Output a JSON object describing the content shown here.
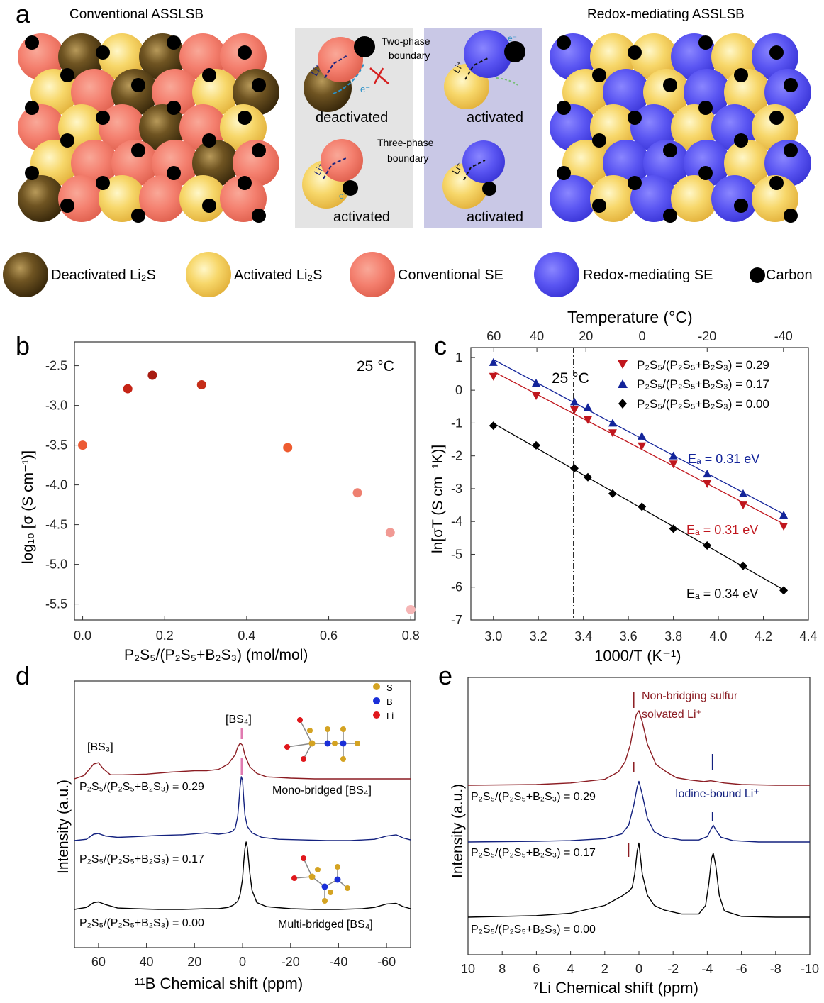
{
  "panel_letters": {
    "a": "a",
    "b": "b",
    "c": "c",
    "d": "d",
    "e": "e"
  },
  "colors": {
    "deactivated": "#5a4216",
    "activated": "#f7d76a",
    "conventional": "#f47f6e",
    "redox": "#5a55f2",
    "carbon": "#000000",
    "red": "#c0161d",
    "blue": "#13249a",
    "black": "#000000",
    "darkred": "#8b1c22",
    "navy": "#13217f"
  },
  "panel_a": {
    "left_title": "Conventional ASSLSB",
    "right_title": "Redox-mediating ASSLSB",
    "two_phase_1": "Two-phase",
    "two_phase_2": "boundary",
    "three_phase_1": "Three-phase",
    "three_phase_2": "boundary",
    "deactivated": "deactivated",
    "activated": "activated",
    "li_label": "Li⁺",
    "e_label": "e⁻",
    "legend": [
      {
        "icon": "deactivated-li2s-sphere",
        "label": "Deactivated Li₂S"
      },
      {
        "icon": "activated-li2s-sphere",
        "label": "Activated Li₂S"
      },
      {
        "icon": "conventional-se-sphere",
        "label": "Conventional SE"
      },
      {
        "icon": "redox-mediating-se-sphere",
        "label": "Redox-mediating SE"
      },
      {
        "icon": "carbon-dot",
        "label": "Carbon"
      }
    ]
  },
  "chart_data": [
    {
      "id": "b",
      "type": "scatter",
      "title": "",
      "annotation": "25 °C",
      "xlabel": "P₂S₅/(P₂S₅+B₂S₃) (mol/mol)",
      "ylabel": "log₁₀ [σ (S cm⁻¹)]",
      "xlim": [
        -0.02,
        0.81
      ],
      "ylim": [
        -5.7,
        -2.2
      ],
      "xticks": [
        0.0,
        0.2,
        0.4,
        0.6,
        0.8
      ],
      "xtick_labels": [
        "0.0",
        "0.2",
        "0.4",
        "0.6",
        "0.8"
      ],
      "yticks": [
        -2.5,
        -3.0,
        -3.5,
        -4.0,
        -4.5,
        -5.0,
        -5.5
      ],
      "ytick_labels": [
        "-2.5",
        "-3.0",
        "-3.5",
        "-4.0",
        "-4.5",
        "-5.0",
        "-5.5"
      ],
      "x": [
        0.0,
        0.11,
        0.17,
        0.29,
        0.5,
        0.67,
        0.75,
        0.8
      ],
      "y": [
        -3.5,
        -2.79,
        -2.62,
        -2.74,
        -3.53,
        -4.1,
        -4.6,
        -5.57
      ],
      "point_colors": [
        "#ec5a34",
        "#c52416",
        "#a81c12",
        "#c52d18",
        "#ee5c30",
        "#ee8070",
        "#f19a94",
        "#f6b6b6"
      ]
    },
    {
      "id": "c",
      "type": "line",
      "xlabel": "1000/T (K⁻¹)",
      "ylabel": "ln[σT (S cm⁻¹K)]",
      "top_axis_label": "Temperature (°C)",
      "top_ticks": [
        60,
        40,
        20,
        0,
        -20,
        -40
      ],
      "top_tick_labels": [
        "60",
        "40",
        "20",
        "0",
        "-20",
        "-40"
      ],
      "xlim": [
        2.9,
        4.4
      ],
      "ylim": [
        -7,
        1.3
      ],
      "xticks": [
        3.0,
        3.2,
        3.4,
        3.6,
        3.8,
        4.0,
        4.2,
        4.4
      ],
      "xtick_labels": [
        "3.0",
        "3.2",
        "3.4",
        "3.6",
        "3.8",
        "4.0",
        "4.2",
        "4.4"
      ],
      "yticks": [
        1,
        0,
        -1,
        -2,
        -3,
        -4,
        -5,
        -6,
        -7
      ],
      "ytick_labels": [
        "1",
        "0",
        "-1",
        "-2",
        "-3",
        "-4",
        "-5",
        "-6",
        "-7"
      ],
      "ref_line": {
        "x": 3.356,
        "label": "25 °C"
      },
      "series": [
        {
          "name": "P₂S₅/(P₂S₅+B₂S₃) = 0.29",
          "marker": "triangle-down",
          "color": "#c0161d",
          "x": [
            3.0,
            3.19,
            3.36,
            3.42,
            3.53,
            3.66,
            3.8,
            3.95,
            4.11,
            4.29
          ],
          "y": [
            0.42,
            -0.17,
            -0.6,
            -0.9,
            -1.3,
            -1.7,
            -2.25,
            -2.85,
            -3.5,
            -4.15
          ],
          "ea_label": "Eₐ = 0.31 eV"
        },
        {
          "name": "P₂S₅/(P₂S₅+B₂S₃) = 0.17",
          "marker": "triangle-up",
          "color": "#13249a",
          "x": [
            3.0,
            3.19,
            3.36,
            3.42,
            3.53,
            3.66,
            3.8,
            3.95,
            4.11,
            4.29
          ],
          "y": [
            0.85,
            0.22,
            -0.35,
            -0.52,
            -1.0,
            -1.4,
            -2.0,
            -2.55,
            -3.15,
            -3.8
          ],
          "ea_label": "Eₐ = 0.31 eV"
        },
        {
          "name": "P₂S₅/(P₂S₅+B₂S₃) = 0.00",
          "marker": "diamond",
          "color": "#000000",
          "x": [
            3.0,
            3.19,
            3.36,
            3.42,
            3.53,
            3.66,
            3.8,
            3.95,
            4.11,
            4.29
          ],
          "y": [
            -1.08,
            -1.68,
            -2.38,
            -2.65,
            -3.15,
            -3.55,
            -4.22,
            -4.73,
            -5.35,
            -6.1
          ],
          "ea_label": "Eₐ = 0.34 eV"
        }
      ]
    },
    {
      "id": "d",
      "type": "line",
      "xlabel": "¹¹B Chemical shift (ppm)",
      "ylabel": "Intensity (a.u.)",
      "xlim": [
        70,
        -70
      ],
      "xticks": [
        60,
        40,
        20,
        0,
        -20,
        -40,
        -60
      ],
      "xtick_labels": [
        "60",
        "40",
        "20",
        "0",
        "-20",
        "-40",
        "-60"
      ],
      "peak_labels": {
        "bs3": "[BS₃]",
        "bs4": "[BS₄]"
      },
      "inset_legend": [
        {
          "label": "S",
          "color": "#d4a322"
        },
        {
          "label": "B",
          "color": "#1a2fd8"
        },
        {
          "label": "Li",
          "color": "#e0181c"
        }
      ],
      "series": [
        {
          "name": "P₂S₅/(P₂S₅+B₂S₃) = 0.29",
          "color": "#8b1c22",
          "x": [
            70,
            66,
            62,
            60,
            58,
            55,
            50,
            40,
            30,
            20,
            15,
            10,
            6,
            3,
            2,
            1,
            0,
            -1,
            -3,
            -6,
            -10,
            -20,
            -30,
            -40,
            -50,
            -60,
            -70
          ],
          "y": [
            0.0,
            0.05,
            0.22,
            0.24,
            0.15,
            0.06,
            0.06,
            0.07,
            0.1,
            0.12,
            0.12,
            0.14,
            0.22,
            0.36,
            0.47,
            0.53,
            0.5,
            0.35,
            0.18,
            0.08,
            0.03,
            0.01,
            0.0,
            0.0,
            0.0,
            0.0,
            0.0
          ]
        },
        {
          "name": "P₂S₅/(P₂S₅+B₂S₃) = 0.17",
          "color": "#13217f",
          "x": [
            70,
            65,
            62,
            60,
            57,
            52,
            45,
            35,
            25,
            15,
            10,
            6,
            4,
            3,
            2,
            1.5,
            1,
            0.5,
            0,
            -0.5,
            -1,
            -2,
            -4,
            -8,
            -15,
            -25,
            -35,
            -45,
            -55,
            -60,
            -64,
            -67,
            -70
          ],
          "y": [
            0.0,
            0.02,
            0.1,
            0.11,
            0.07,
            0.05,
            0.06,
            0.08,
            0.09,
            0.12,
            0.1,
            0.12,
            0.15,
            0.2,
            0.38,
            0.6,
            0.85,
            1.0,
            0.95,
            0.65,
            0.4,
            0.22,
            0.12,
            0.05,
            0.02,
            0.01,
            0.0,
            0.0,
            0.02,
            0.07,
            0.09,
            0.04,
            0.01
          ]
        },
        {
          "name": "P₂S₅/(P₂S₅+B₂S₃) = 0.00",
          "color": "#000000",
          "x": [
            70,
            65,
            62,
            60,
            57,
            52,
            45,
            35,
            25,
            15,
            10,
            6,
            4,
            2,
            1,
            0,
            -0.5,
            -1,
            -1.5,
            -2,
            -3,
            -4,
            -6,
            -10,
            -20,
            -30,
            -40,
            -50,
            -55,
            -60,
            -64,
            -67,
            -70
          ],
          "y": [
            0.0,
            0.03,
            0.1,
            0.11,
            0.07,
            0.02,
            0.01,
            0.0,
            0.0,
            0.01,
            0.01,
            0.03,
            0.06,
            0.12,
            0.22,
            0.45,
            0.7,
            0.9,
            1.0,
            0.92,
            0.55,
            0.28,
            0.1,
            0.04,
            0.01,
            0.0,
            0.0,
            0.01,
            0.03,
            0.08,
            0.09,
            0.04,
            0.01
          ]
        }
      ],
      "series_labels": [
        "P₂S₅/(P₂S₅+B₂S₃) = 0.29",
        "P₂S₅/(P₂S₅+B₂S₃) = 0.17",
        "P₂S₅/(P₂S₅+B₂S₃) = 0.00"
      ],
      "annotations": {
        "mono": "Mono-bridged [BS₄]",
        "multi": "Multi-bridged [BS₄]"
      }
    },
    {
      "id": "e",
      "type": "line",
      "xlabel": "⁷Li Chemical shift (ppm)",
      "ylabel": "Intensity (a.u.)",
      "xlim": [
        10,
        -10
      ],
      "xticks": [
        10,
        8,
        6,
        4,
        2,
        0,
        -2,
        -4,
        -6,
        -8,
        -10
      ],
      "xtick_labels": [
        "10",
        "8",
        "6",
        "4",
        "2",
        "0",
        "-2",
        "-4",
        "-6",
        "-8",
        "-10"
      ],
      "series": [
        {
          "name": "P₂S₅/(P₂S₅+B₂S₃) = 0.29",
          "color": "#8b1c22",
          "x": [
            10,
            6,
            4,
            2,
            1.2,
            0.8,
            0.5,
            0.3,
            0.15,
            0,
            -0.2,
            -0.5,
            -1,
            -1.6,
            -2.2,
            -3,
            -3.8,
            -4.2,
            -4.5,
            -5,
            -6,
            -8,
            -10
          ],
          "y": [
            0.0,
            0.01,
            0.03,
            0.08,
            0.18,
            0.32,
            0.55,
            0.8,
            0.95,
            1.0,
            0.85,
            0.55,
            0.28,
            0.18,
            0.1,
            0.07,
            0.05,
            0.06,
            0.05,
            0.03,
            0.01,
            0.0,
            0.0
          ]
        },
        {
          "name": "P₂S₅/(P₂S₅+B₂S₃) = 0.17",
          "color": "#13217f",
          "x": [
            10,
            6,
            4,
            2,
            1,
            0.6,
            0.3,
            0.1,
            0,
            -0.2,
            -0.5,
            -0.9,
            -1.5,
            -2.5,
            -3.5,
            -4,
            -4.2,
            -4.35,
            -4.5,
            -4.8,
            -5.5,
            -7,
            -10
          ],
          "y": [
            0.0,
            0.01,
            0.02,
            0.05,
            0.12,
            0.25,
            0.55,
            0.82,
            0.9,
            0.7,
            0.35,
            0.15,
            0.07,
            0.03,
            0.03,
            0.08,
            0.18,
            0.25,
            0.18,
            0.07,
            0.02,
            0.0,
            0.0
          ]
        },
        {
          "name": "P₂S₅/(P₂S₅+B₂S₃) = 0.00",
          "color": "#000000",
          "x": [
            10,
            6,
            4,
            2,
            1,
            0.6,
            0.4,
            0.25,
            0.1,
            0,
            -0.2,
            -0.5,
            -0.9,
            -1.5,
            -2.5,
            -3.5,
            -3.9,
            -4.1,
            -4.25,
            -4.35,
            -4.5,
            -4.7,
            -5,
            -6,
            -8,
            -10
          ],
          "y": [
            0.0,
            0.02,
            0.05,
            0.15,
            0.27,
            0.33,
            0.38,
            0.55,
            0.85,
            0.95,
            0.55,
            0.28,
            0.15,
            0.09,
            0.04,
            0.04,
            0.15,
            0.45,
            0.75,
            0.82,
            0.65,
            0.28,
            0.08,
            0.01,
            0.0,
            0.0
          ]
        }
      ],
      "series_labels": [
        "P₂S₅/(P₂S₅+B₂S₃) = 0.29",
        "P₂S₅/(P₂S₅+B₂S₃) = 0.17",
        "P₂S₅/(P₂S₅+B₂S₃) = 0.00"
      ],
      "annotations": {
        "nbs_1": "Non-bridging sulfur",
        "nbs_2": "solvated Li⁺",
        "iodine": "Iodine-bound Li⁺"
      }
    }
  ]
}
